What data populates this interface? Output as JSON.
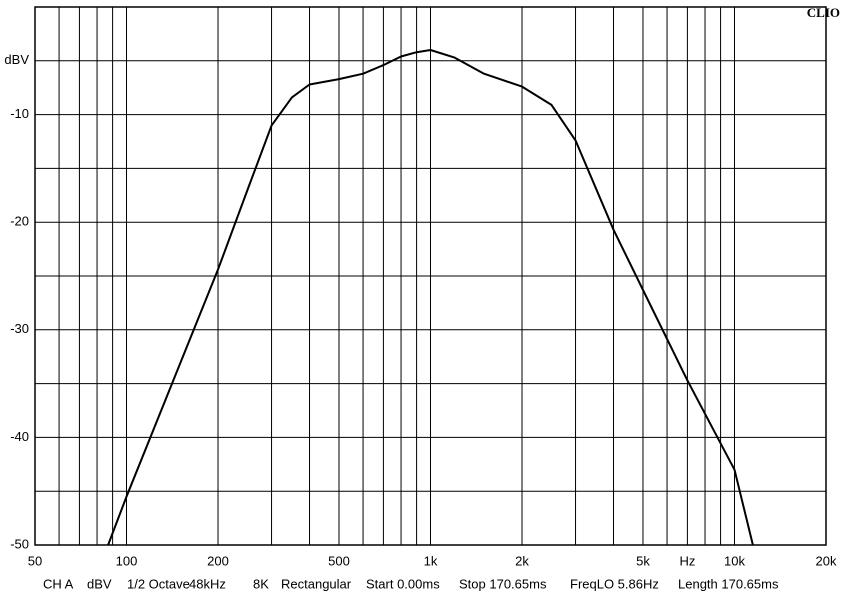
{
  "chart_data": {
    "type": "line",
    "brand": "CLIO",
    "x": [
      87,
      100,
      200,
      250,
      300,
      350,
      400,
      500,
      600,
      700,
      800,
      900,
      1000,
      1200,
      1500,
      2000,
      2500,
      3000,
      4000,
      5000,
      7000,
      10000,
      11500
    ],
    "series": [
      {
        "name": "CH A",
        "color": "#000000",
        "values": [
          -50,
          -45.5,
          -24.4,
          -17,
          -11,
          -8.4,
          -7.2,
          -6.7,
          -6.2,
          -5.4,
          -4.6,
          -4.2,
          -4.0,
          -4.7,
          -6.2,
          -7.4,
          -9.1,
          -12.4,
          -20.7,
          -26.3,
          -34.7,
          -43,
          -50
        ]
      }
    ],
    "xlog": true,
    "xlim": [
      50,
      20000
    ],
    "xticks": [
      50,
      100,
      200,
      500,
      {
        "value": 1000,
        "label": "1k"
      },
      {
        "value": 2000,
        "label": "2k"
      },
      {
        "value": 5000,
        "label": "5k"
      },
      {
        "value": 7000,
        "label": "Hz"
      },
      {
        "value": 10000,
        "label": "10k"
      },
      {
        "value": 20000,
        "label": "20k"
      }
    ],
    "x_minor_grid": [
      60,
      70,
      80,
      90,
      300,
      400,
      600,
      700,
      800,
      900,
      3000,
      4000,
      6000,
      8000,
      9000
    ],
    "ylim": [
      -50,
      0
    ],
    "yticks": [
      -50,
      -40,
      -30,
      -20,
      -10,
      {
        "value": -5,
        "label": "dBV"
      }
    ],
    "y_minor_grid": [
      -45,
      -35,
      -25,
      -15,
      0
    ],
    "grid": true,
    "footer": [
      "CH A",
      "dBV",
      "1/2 Octave",
      "48kHz",
      "8K",
      "Rectangular",
      "Start 0.00ms",
      "Stop 170.65ms",
      "FreqLO 5.86Hz",
      "Length 170.65ms"
    ]
  }
}
